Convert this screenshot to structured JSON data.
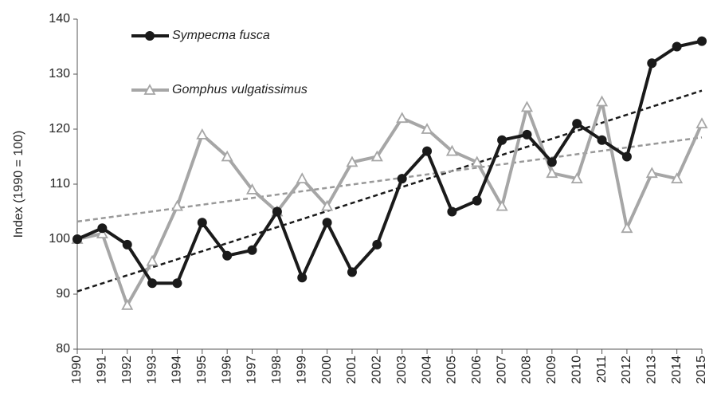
{
  "chart_data": {
    "type": "line",
    "y_label": "Index (1990 = 100)",
    "categories": [
      "1990",
      "1991",
      "1992",
      "1993",
      "1994",
      "1995",
      "1996",
      "1997",
      "1998",
      "1999",
      "2000",
      "2001",
      "2002",
      "2003",
      "2004",
      "2005",
      "2006",
      "2007",
      "2008",
      "2009",
      "2010",
      "2011",
      "2012",
      "2013",
      "2014",
      "2015"
    ],
    "series": [
      {
        "name": "Sympecma fusca",
        "color": "#1a1a1a",
        "marker": "circle",
        "values": [
          100,
          102,
          99,
          92,
          92,
          103,
          97,
          98,
          105,
          93,
          103,
          94,
          99,
          111,
          116,
          105,
          107,
          118,
          119,
          114,
          121,
          118,
          115,
          132,
          135,
          136
        ],
        "trend": [
          90.5,
          127
        ]
      },
      {
        "name": "Gomphus vulgatissimus",
        "color": "#a6a6a6",
        "marker": "triangle",
        "values": [
          100,
          101,
          88,
          96,
          106,
          119,
          115,
          109,
          105,
          111,
          106,
          114,
          115,
          122,
          120,
          116,
          114,
          106,
          124,
          112,
          111,
          125,
          102,
          112,
          111,
          121
        ],
        "trend": [
          103.2,
          118.5
        ]
      }
    ],
    "ylim": [
      80,
      140
    ],
    "yticks": [
      80,
      90,
      100,
      110,
      120,
      130,
      140
    ],
    "grid": false
  }
}
